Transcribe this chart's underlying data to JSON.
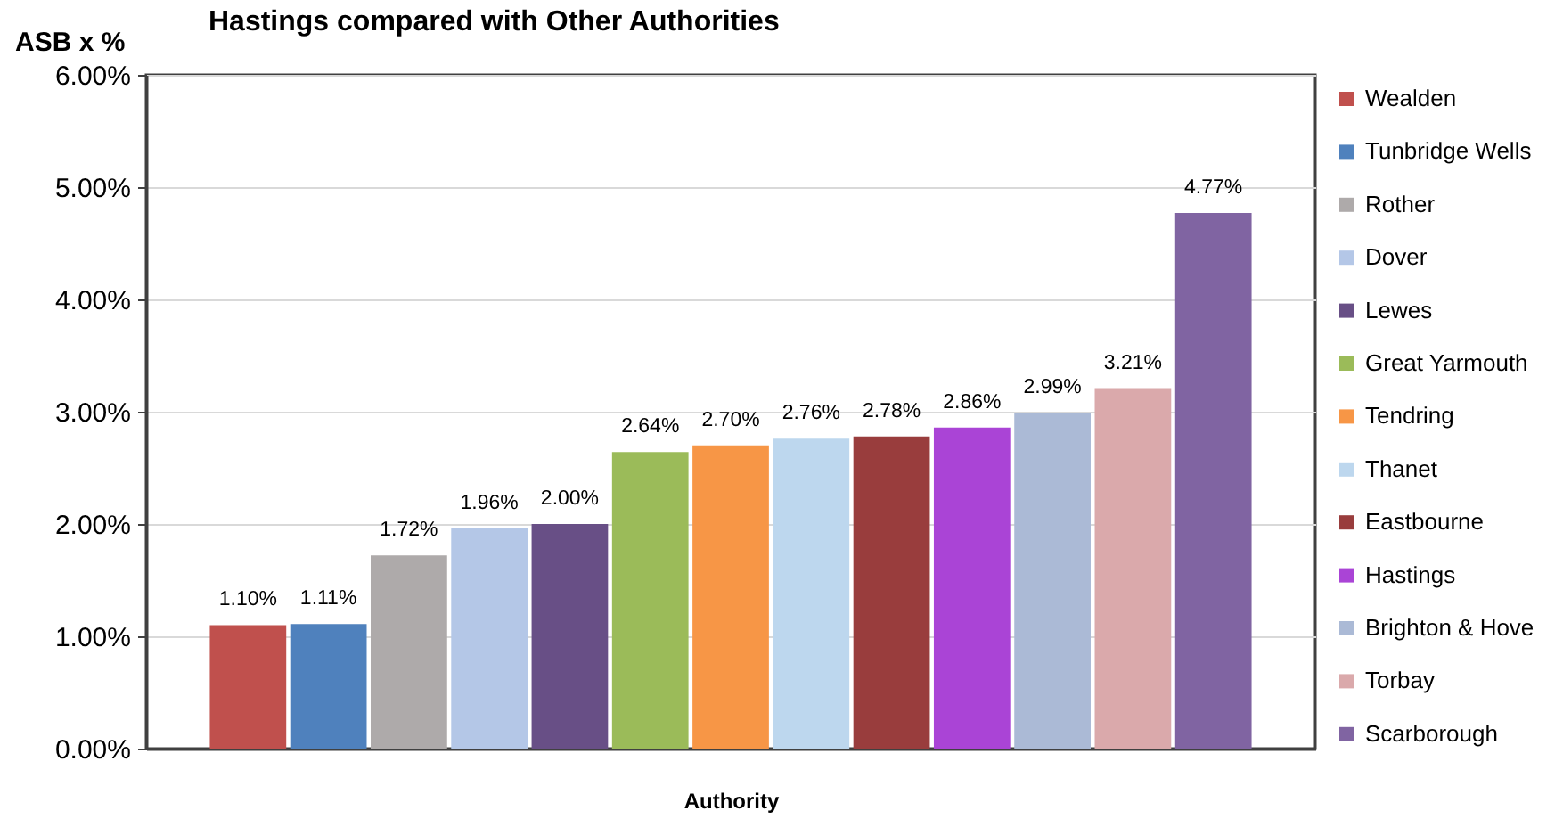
{
  "chart_data": {
    "type": "bar",
    "title": "Hastings compared with Other Authorities",
    "xlabel": "Authority",
    "ylabel": "ASB x %",
    "categories": [
      null
    ],
    "series": [
      {
        "name": "Wealden",
        "color": "#c0504d",
        "values": [
          1.1
        ],
        "value_labels": [
          "1.10%"
        ]
      },
      {
        "name": "Tunbridge Wells",
        "color": "#4f81bd",
        "values": [
          1.11
        ],
        "value_labels": [
          "1.11%"
        ]
      },
      {
        "name": "Rother",
        "color": "#aeaaaa",
        "values": [
          1.72
        ],
        "value_labels": [
          "1.72%"
        ]
      },
      {
        "name": "Dover",
        "color": "#b4c7e7",
        "values": [
          1.96
        ],
        "value_labels": [
          "1.96%"
        ]
      },
      {
        "name": "Lewes",
        "color": "#684f86",
        "values": [
          2.0
        ],
        "value_labels": [
          "2.00%"
        ]
      },
      {
        "name": "Great Yarmouth",
        "color": "#9bbb59",
        "values": [
          2.64
        ],
        "value_labels": [
          "2.64%"
        ]
      },
      {
        "name": "Tendring",
        "color": "#f79646",
        "values": [
          2.7
        ],
        "value_labels": [
          "2.70%"
        ]
      },
      {
        "name": "Thanet",
        "color": "#bdd7ee",
        "values": [
          2.76
        ],
        "value_labels": [
          "2.76%"
        ]
      },
      {
        "name": "Eastbourne",
        "color": "#993d3d",
        "values": [
          2.78
        ],
        "value_labels": [
          "2.78%"
        ]
      },
      {
        "name": "Hastings",
        "color": "#aa44d6",
        "values": [
          2.86
        ],
        "value_labels": [
          "2.86%"
        ]
      },
      {
        "name": "Brighton & Hove",
        "color": "#abbad6",
        "values": [
          2.99
        ],
        "value_labels": [
          "2.99%"
        ]
      },
      {
        "name": "Torbay",
        "color": "#daa9ab",
        "values": [
          3.21
        ],
        "value_labels": [
          "3.21%"
        ]
      },
      {
        "name": "Scarborough",
        "color": "#8064a2",
        "values": [
          4.77
        ],
        "value_labels": [
          "4.77%"
        ]
      }
    ],
    "ylim": [
      0,
      6
    ],
    "yticks": [
      {
        "value": 0,
        "label": "0.00%"
      },
      {
        "value": 1,
        "label": "1.00%"
      },
      {
        "value": 2,
        "label": "2.00%"
      },
      {
        "value": 3,
        "label": "3.00%"
      },
      {
        "value": 4,
        "label": "4.00%"
      },
      {
        "value": 5,
        "label": "5.00%"
      },
      {
        "value": 6,
        "label": "6.00%"
      }
    ],
    "grid": "y",
    "legend": "right",
    "tick_labels": "y"
  }
}
